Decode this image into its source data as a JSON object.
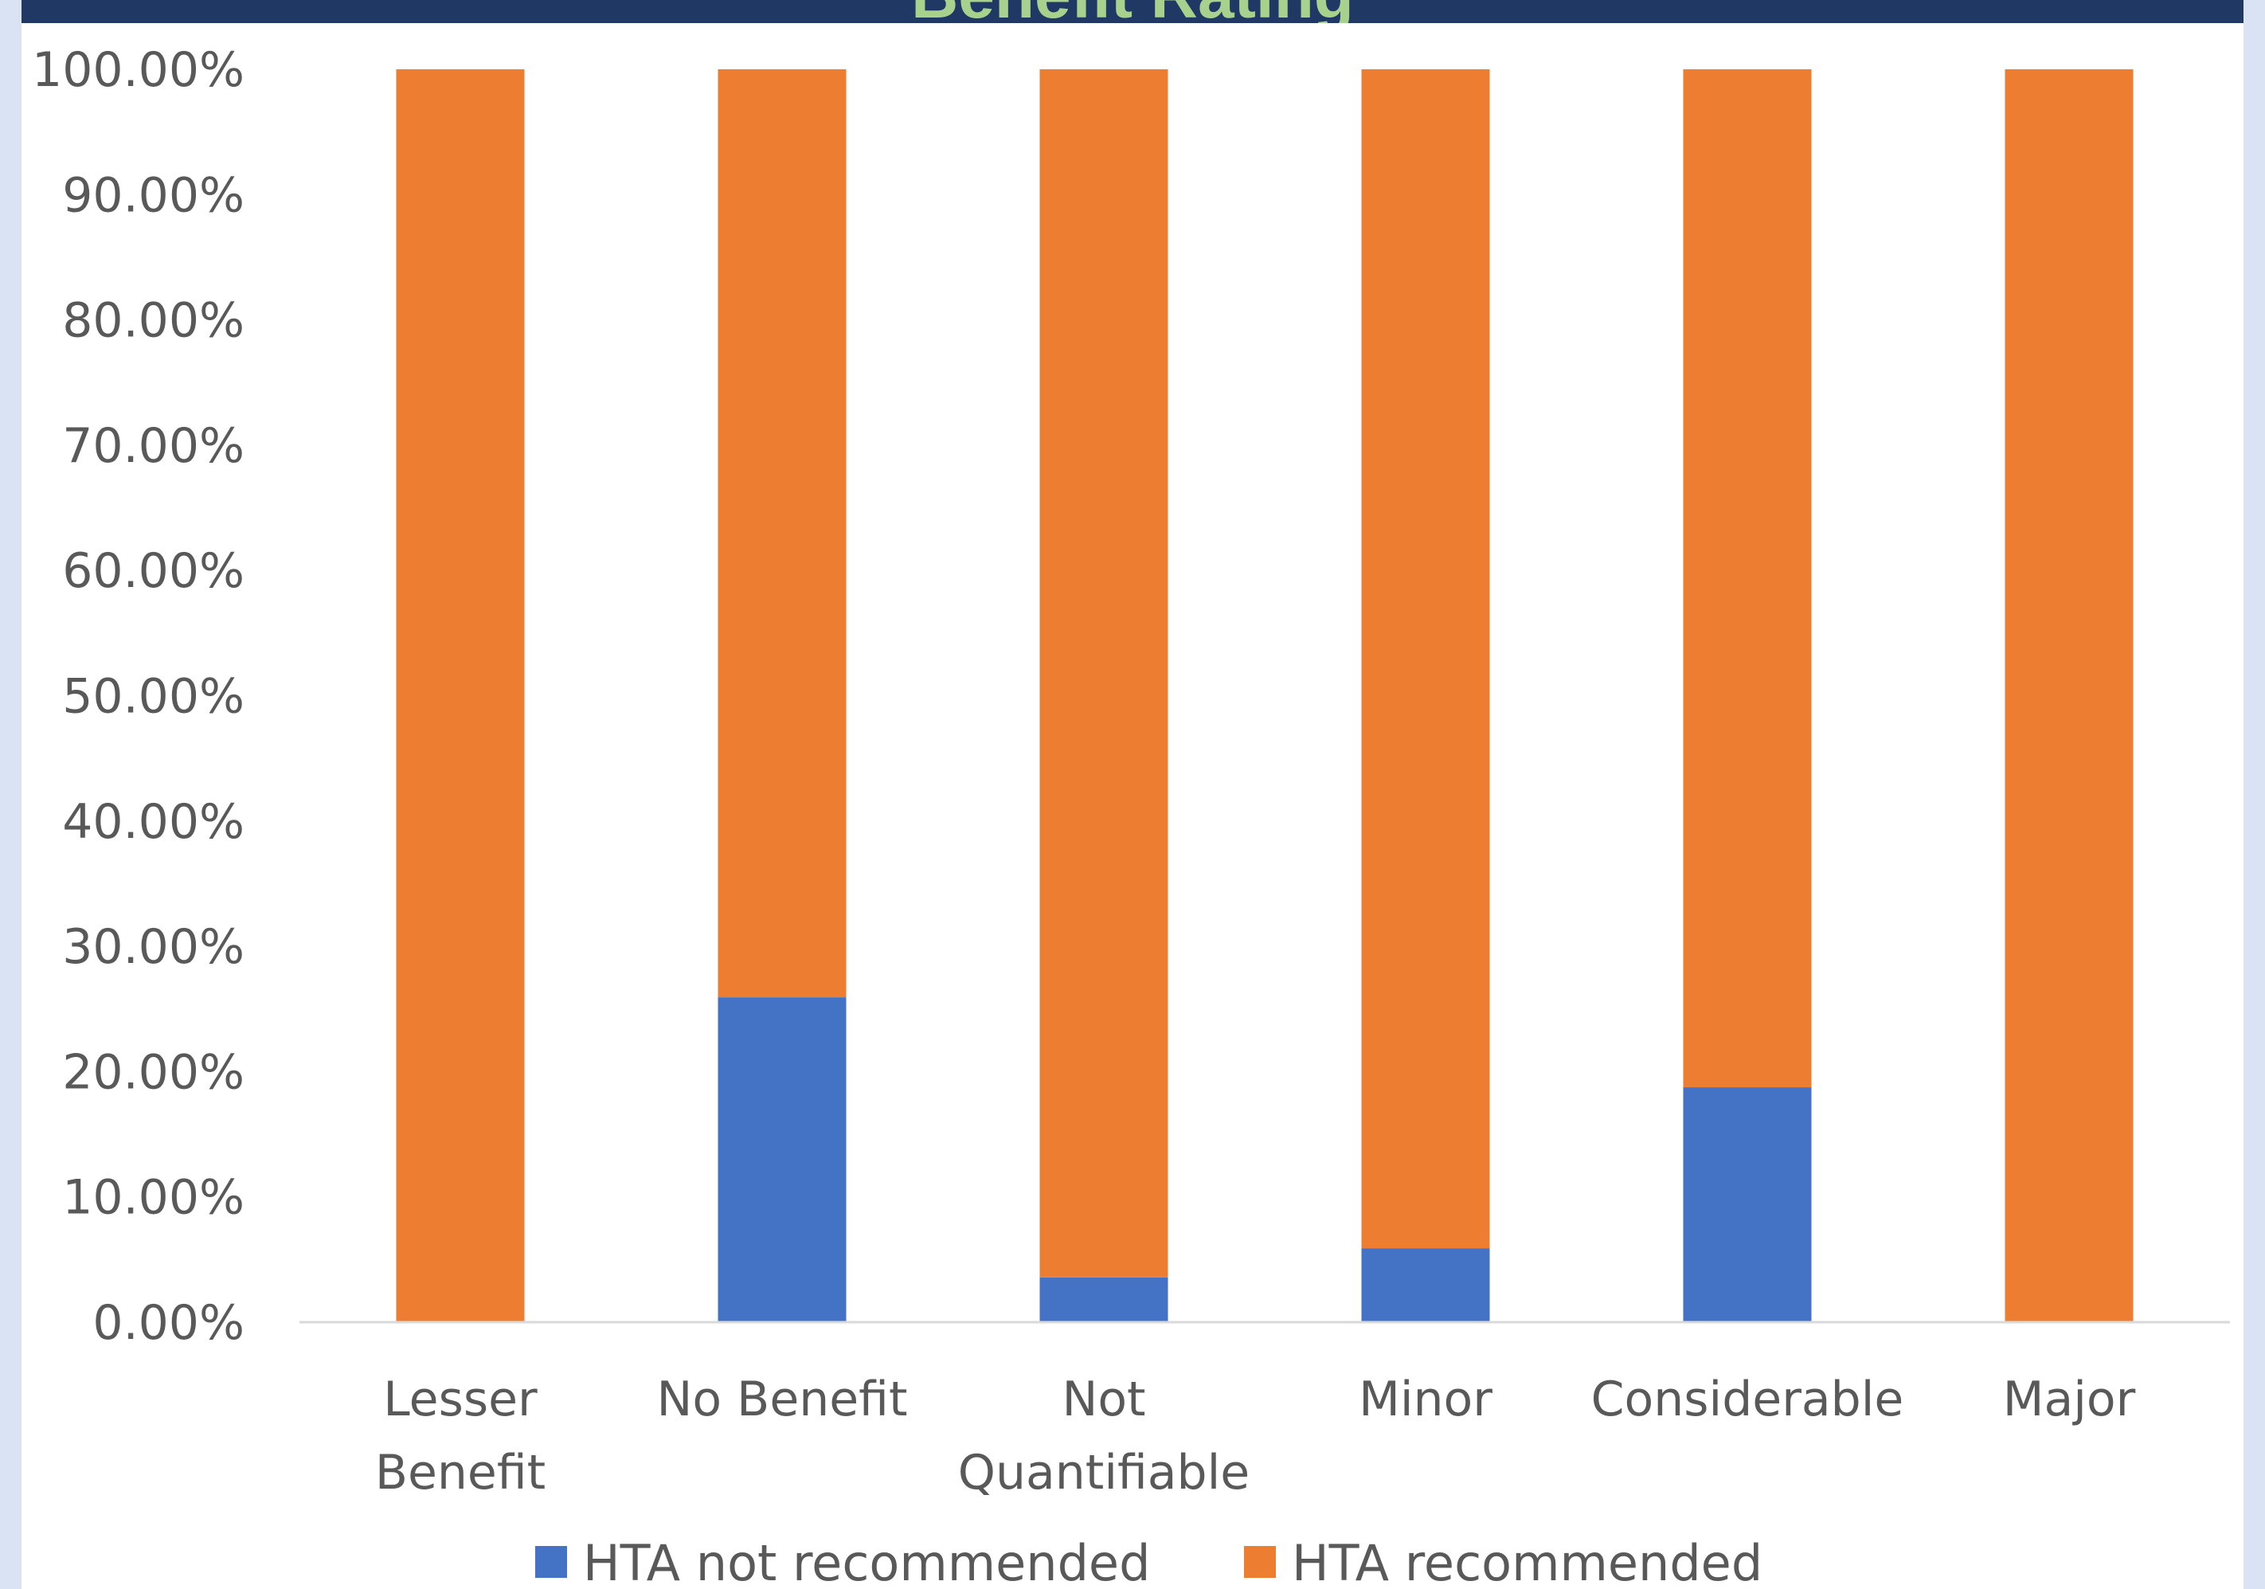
{
  "chart_data": {
    "type": "bar",
    "stacked": true,
    "title": "Benefit Rating",
    "categories": [
      [
        "Lesser",
        "Benefit"
      ],
      [
        "No Benefit"
      ],
      [
        "Not",
        "Quantifiable"
      ],
      [
        "Minor"
      ],
      [
        "Considerable"
      ],
      [
        "Major"
      ]
    ],
    "series": [
      {
        "name": "HTA not recommended",
        "color": "#4472c4",
        "values": [
          0,
          25.93,
          3.57,
          5.88,
          18.75,
          0
        ]
      },
      {
        "name": "HTA recommended",
        "color": "#ed7d31",
        "values": [
          100,
          74.07,
          96.43,
          94.12,
          81.25,
          100
        ]
      }
    ],
    "ylim": [
      0,
      100
    ],
    "yticks": [
      "0.00%",
      "10.00%",
      "20.00%",
      "30.00%",
      "40.00%",
      "50.00%",
      "60.00%",
      "70.00%",
      "80.00%",
      "90.00%",
      "100.00%"
    ],
    "grid": false,
    "legend": "bottom"
  }
}
